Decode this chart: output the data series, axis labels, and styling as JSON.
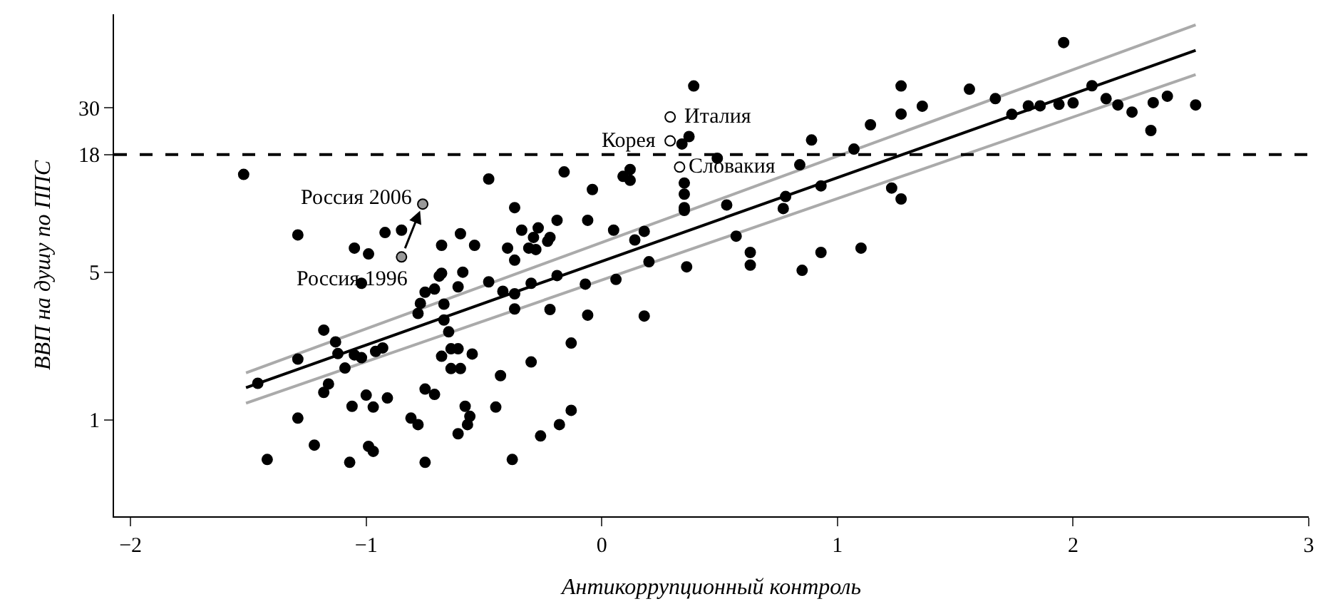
{
  "chart_data": {
    "type": "scatter",
    "xlabel": "Антикоррупционный контроль",
    "ylabel": "ВВП на душу по ППС",
    "log": "y",
    "xlim": [
      -2.07,
      3.0
    ],
    "ylim": [
      0.35,
      83
    ],
    "xticks": [
      -2,
      -1,
      0,
      1,
      2,
      3
    ],
    "yticks": [
      1,
      5,
      18,
      30
    ],
    "marker": "circle",
    "ref_lines": [
      {
        "axis": "y",
        "value": 18,
        "line_style": "dashed",
        "color": "#000000"
      }
    ],
    "annotations": [
      {
        "text": "Италия",
        "x": 0.29,
        "y": 27.1
      },
      {
        "text": "Корея",
        "x": 0.29,
        "y": 20.9
      },
      {
        "text": "Словакия",
        "x": 0.33,
        "y": 15.7
      },
      {
        "text": "Россия 2006",
        "x": -0.76,
        "y": 10.5
      },
      {
        "text": "Россия 1996",
        "x": -0.85,
        "y": 5.9
      }
    ],
    "series": [
      {
        "color": "#000000",
        "x": [
          -1.46,
          -1.29,
          -1.18,
          -1.13,
          -1.12,
          -1.09,
          -1.05,
          -1.02,
          -0.96,
          -0.93,
          -1.16,
          -1.18,
          -1.29,
          -1.22,
          -1.42,
          -1.07,
          -1.06,
          -1.0,
          -0.97,
          -0.91,
          -0.99,
          -0.97,
          -0.81,
          -0.78,
          -0.75,
          -0.71,
          -0.75,
          -0.68,
          -0.64,
          -0.61,
          -0.64,
          -0.6,
          -0.55,
          -0.43,
          -0.58,
          -0.56,
          -0.57,
          -0.61,
          -0.45,
          -0.38,
          -0.65,
          -0.67,
          -0.67,
          -0.78,
          -0.77,
          -0.75,
          -0.71,
          -0.69,
          -0.68,
          -0.61,
          -0.59,
          -0.48,
          -0.42,
          -0.37,
          -0.37,
          -1.02,
          -1.52,
          -0.48,
          -1.29,
          -1.05,
          -0.99,
          -0.92,
          -0.85,
          -0.68,
          -0.6,
          -0.54,
          -0.4,
          -0.37,
          -0.37,
          0.39,
          1.27,
          1.27,
          1.14,
          0.89,
          1.07,
          0.49,
          0.37,
          0.34,
          -0.16,
          0.12,
          0.09,
          0.12,
          -0.04,
          0.35,
          0.35,
          0.35,
          0.35,
          0.53,
          0.78,
          0.77,
          0.93,
          0.84,
          1.23,
          1.27,
          -0.19,
          -0.06,
          -0.34,
          -0.27,
          -0.29,
          -0.22,
          -0.23,
          -0.31,
          -0.28,
          0.05,
          0.18,
          0.14,
          0.57,
          0.2,
          0.36,
          0.63,
          0.63,
          0.93,
          1.1,
          0.85,
          1.96,
          1.56,
          1.67,
          1.36,
          1.74,
          1.81,
          1.86,
          1.94,
          2.0,
          2.08,
          2.14,
          2.19,
          2.25,
          2.33,
          2.34,
          2.4,
          2.52,
          -0.3,
          -0.19,
          -0.07,
          0.06,
          -0.22,
          -0.06,
          0.18,
          -0.13,
          -0.3,
          -0.13,
          -0.18,
          -0.26
        ],
        "values": [
          1.49,
          1.94,
          2.66,
          2.34,
          2.06,
          1.76,
          2.03,
          1.97,
          2.11,
          2.19,
          1.48,
          1.35,
          1.02,
          0.76,
          0.65,
          0.63,
          1.16,
          1.31,
          1.15,
          1.27,
          0.75,
          0.71,
          1.02,
          0.95,
          1.4,
          1.32,
          0.63,
          2.0,
          2.17,
          2.17,
          1.75,
          1.75,
          2.05,
          1.62,
          1.16,
          1.04,
          0.95,
          0.86,
          1.15,
          0.65,
          2.61,
          2.97,
          3.53,
          3.19,
          3.56,
          4.02,
          4.16,
          4.79,
          4.94,
          4.26,
          5.0,
          4.5,
          4.06,
          3.95,
          3.35,
          4.43,
          14.5,
          13.8,
          7.5,
          6.5,
          6.1,
          7.7,
          7.9,
          6.7,
          7.6,
          6.7,
          6.5,
          10.1,
          5.7,
          38,
          38,
          28,
          24.9,
          21.1,
          19.1,
          17.3,
          21.9,
          20.2,
          14.9,
          15.3,
          14.2,
          13.6,
          12.3,
          13.2,
          11.7,
          10.1,
          9.8,
          10.4,
          11.4,
          10.0,
          12.8,
          16.1,
          12.5,
          11.1,
          8.8,
          8.8,
          7.9,
          8.1,
          7.3,
          7.3,
          7.0,
          6.5,
          6.4,
          7.9,
          7.8,
          7.1,
          7.4,
          5.6,
          5.3,
          6.2,
          5.4,
          6.2,
          6.5,
          5.1,
          61,
          36.7,
          33.1,
          30.5,
          27.9,
          30.6,
          30.6,
          31.1,
          31.6,
          38.1,
          33.1,
          30.9,
          28.6,
          23.4,
          31.7,
          34.0,
          30.9,
          4.43,
          4.82,
          4.39,
          4.62,
          3.33,
          3.13,
          3.1,
          2.31,
          1.88,
          1.11,
          0.95,
          0.84
        ]
      },
      {
        "color": "#ffffff",
        "x": [
          0.29,
          0.29,
          0.33
        ],
        "values": [
          27.1,
          20.9,
          15.7
        ]
      },
      {
        "color": "#999999",
        "x": [
          -0.85,
          -0.76
        ],
        "values": [
          5.9,
          10.5
        ]
      },
      {
        "type": "line",
        "marker": "none",
        "color": "#000000",
        "x": [
          -1.51,
          2.52
        ],
        "values": [
          1.42,
          56
        ]
      },
      {
        "type": "line",
        "marker": "none",
        "color": "#aaaaaa",
        "x": [
          -1.51,
          2.52
        ],
        "values": [
          1.67,
          74
        ]
      },
      {
        "type": "line",
        "marker": "none",
        "color": "#aaaaaa",
        "x": [
          -1.51,
          2.52
        ],
        "values": [
          1.2,
          43
        ]
      }
    ]
  }
}
